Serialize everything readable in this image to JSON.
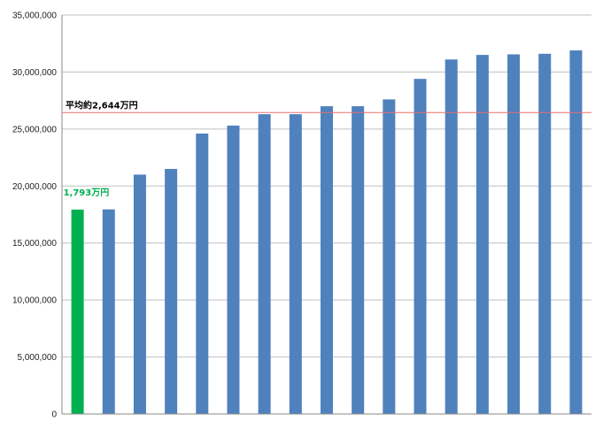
{
  "chart_data": {
    "type": "bar",
    "title": "",
    "xlabel": "",
    "ylabel": "",
    "ylim": [
      0,
      35000000
    ],
    "yticks": [
      "0",
      "5,000,000",
      "10,000,000",
      "15,000,000",
      "20,000,000",
      "25,000,000",
      "30,000,000",
      "35,000,000"
    ],
    "grid": true,
    "values": [
      17930000,
      17950000,
      21000000,
      21500000,
      24600000,
      25300000,
      26300000,
      26300000,
      27000000,
      27000000,
      27600000,
      29400000,
      31100000,
      31500000,
      31550000,
      31600000,
      31900000
    ],
    "highlight_index": 0,
    "colors": {
      "highlight": "#00b050",
      "bar": "#4f81bd",
      "average_line": "#e8706a",
      "grid": "#bfbfbf",
      "axis": "#888888"
    },
    "average": {
      "value": 26440000,
      "label": "平均約2,644万円"
    },
    "highlight_label": "1,793万円"
  }
}
